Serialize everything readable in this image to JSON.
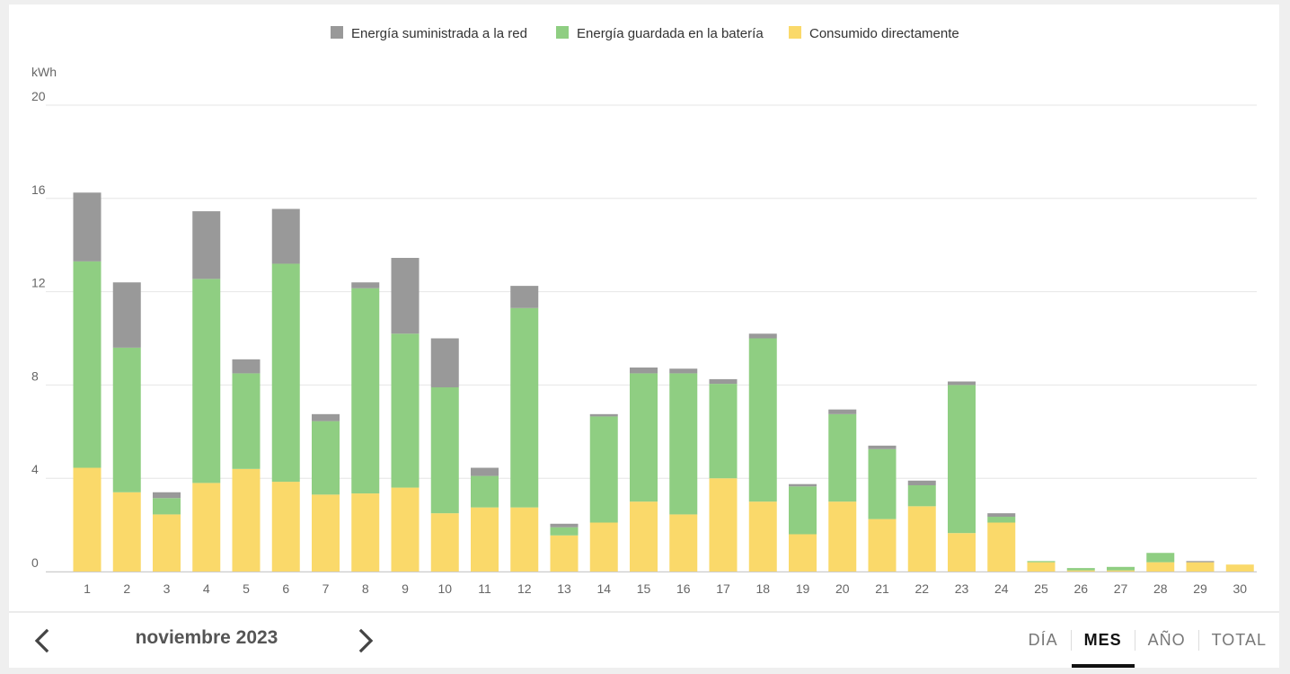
{
  "chart_data": {
    "type": "bar",
    "stacked": true,
    "ylabel": "kWh",
    "xlabel": "",
    "ylim": [
      0,
      20
    ],
    "yticks": [
      0,
      4,
      8,
      12,
      16,
      20
    ],
    "grid": true,
    "legend_position": "top-center",
    "categories": [
      "1",
      "2",
      "3",
      "4",
      "5",
      "6",
      "7",
      "8",
      "9",
      "10",
      "11",
      "12",
      "13",
      "14",
      "15",
      "16",
      "17",
      "18",
      "19",
      "20",
      "21",
      "22",
      "23",
      "24",
      "25",
      "26",
      "27",
      "28",
      "29",
      "30"
    ],
    "series": [
      {
        "name": "Consumido directamente",
        "color": "#fad96a",
        "values": [
          4.45,
          3.4,
          2.45,
          3.8,
          4.4,
          3.85,
          3.3,
          3.35,
          3.6,
          2.5,
          2.75,
          2.75,
          1.55,
          2.1,
          3.0,
          2.45,
          4.0,
          3.0,
          1.6,
          3.0,
          2.25,
          2.8,
          1.65,
          2.1,
          0.4,
          0.05,
          0.05,
          0.4,
          0.4,
          0.3
        ]
      },
      {
        "name": "Energía guardada en la batería",
        "color": "#8fce82",
        "values": [
          8.85,
          6.2,
          0.7,
          8.75,
          4.1,
          9.35,
          3.15,
          8.8,
          6.6,
          5.4,
          1.35,
          8.55,
          0.35,
          4.55,
          5.5,
          6.05,
          4.05,
          7.0,
          2.05,
          3.75,
          3.0,
          0.9,
          6.35,
          0.25,
          0.05,
          0.1,
          0.15,
          0.4,
          0.0,
          0.0
        ]
      },
      {
        "name": "Energía suministrada a la red",
        "color": "#999999",
        "values": [
          2.95,
          2.8,
          0.25,
          2.9,
          0.6,
          2.35,
          0.3,
          0.25,
          3.25,
          2.1,
          0.35,
          0.95,
          0.15,
          0.1,
          0.25,
          0.2,
          0.2,
          0.2,
          0.1,
          0.2,
          0.15,
          0.2,
          0.15,
          0.15,
          0.0,
          0.0,
          0.0,
          0.0,
          0.05,
          0.0
        ]
      }
    ],
    "legend_order": [
      "Energía suministrada a la red",
      "Energía guardada en la batería",
      "Consumido directamente"
    ]
  },
  "footer": {
    "period": "noviembre 2023",
    "tabs": [
      {
        "label": "DÍA",
        "active": false
      },
      {
        "label": "MES",
        "active": true
      },
      {
        "label": "AÑO",
        "active": false
      },
      {
        "label": "TOTAL",
        "active": false
      }
    ]
  },
  "colors": {
    "grid": "#e6e6e6",
    "axis_text": "#666666",
    "legend_text": "#333333"
  },
  "icons": {
    "prev": "chevron-left-icon",
    "next": "chevron-right-icon"
  }
}
